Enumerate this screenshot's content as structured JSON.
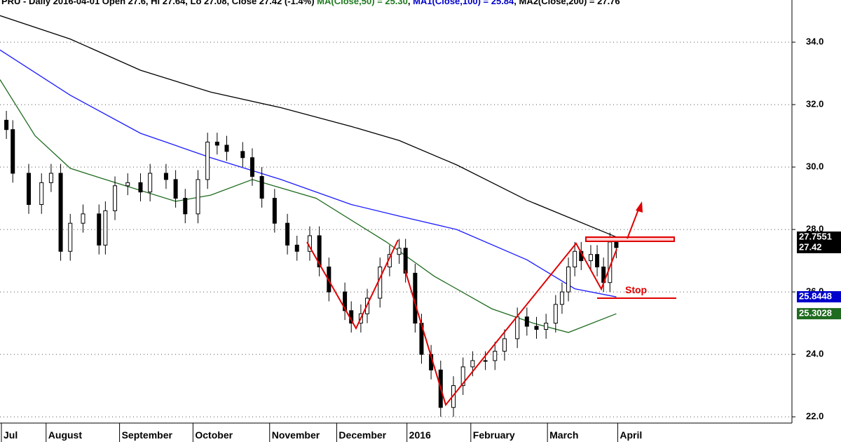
{
  "chart_data": {
    "type": "candlestick",
    "title_parts": [
      {
        "text": "PRU - Daily 2016-04-01 Open 27.6, Hi 27.64, Lo 27.08, Close 27.42 (-1.4%) ",
        "color": "#000000"
      },
      {
        "text": "MA(Close,50) = 25.30",
        "color": "#1f7a1f"
      },
      {
        "text": ", ",
        "color": "#000000"
      },
      {
        "text": "MA1(Close,100) = 25.84",
        "color": "#0000cc"
      },
      {
        "text": ", MA2(Close,200) = 27.76",
        "color": "#000000"
      }
    ],
    "xlim": [
      0,
      248
    ],
    "xticks": [
      {
        "value": 0,
        "label": "Jul"
      },
      {
        "value": 14,
        "label": "August"
      },
      {
        "value": 37,
        "label": "September"
      },
      {
        "value": 60,
        "label": "October"
      },
      {
        "value": 84,
        "label": "November"
      },
      {
        "value": 105,
        "label": "December"
      },
      {
        "value": 127,
        "label": "2016"
      },
      {
        "value": 147,
        "label": "February"
      },
      {
        "value": 171,
        "label": "March"
      },
      {
        "value": 193,
        "label": "April"
      }
    ],
    "ylim": [
      21.8,
      35.35
    ],
    "yticks": [
      {
        "value": 22,
        "label": "22.0"
      },
      {
        "value": 24,
        "label": "24.0"
      },
      {
        "value": 26,
        "label": "26.0"
      },
      {
        "value": 28,
        "label": "28.0"
      },
      {
        "value": 30,
        "label": "30.0"
      },
      {
        "value": 32,
        "label": "32.0"
      },
      {
        "value": 34,
        "label": "34.0"
      }
    ],
    "grid": true,
    "candles": {
      "x": [
        2,
        4,
        9,
        13,
        16,
        19,
        22,
        26,
        31,
        33,
        36,
        40,
        44,
        47,
        52,
        55,
        58,
        62,
        65,
        68,
        71,
        76,
        79,
        82,
        86,
        90,
        93,
        97,
        100,
        103,
        108,
        110,
        113,
        115,
        119,
        122,
        125,
        127,
        130,
        132,
        135,
        138,
        142,
        145,
        148,
        152,
        155,
        158,
        162,
        165,
        168,
        171,
        174,
        176,
        178,
        180,
        182,
        185,
        187,
        189,
        191,
        193
      ],
      "open": [
        31.5,
        31.2,
        29.8,
        28.8,
        29.5,
        29.8,
        27.3,
        28.2,
        28.5,
        27.5,
        28.6,
        29.4,
        29.5,
        29.2,
        29.8,
        29.6,
        29.0,
        28.5,
        29.6,
        30.8,
        30.7,
        30.5,
        30.3,
        29.7,
        29.0,
        28.2,
        27.5,
        27.3,
        27.8,
        26.8,
        26.0,
        25.4,
        25.0,
        25.3,
        25.8,
        26.8,
        27.2,
        27.4,
        26.6,
        25.0,
        24.0,
        23.5,
        22.3,
        23.0,
        23.6,
        23.8,
        23.8,
        24.1,
        24.5,
        25.2,
        24.9,
        24.8,
        25.0,
        25.6,
        26.0,
        26.8,
        27.3,
        27.0,
        27.2,
        26.8,
        26.3,
        27.6
      ],
      "high": [
        31.8,
        31.5,
        30.1,
        29.8,
        30.1,
        30.1,
        28.5,
        28.8,
        28.8,
        28.9,
        29.7,
        29.8,
        29.8,
        30.1,
        30.1,
        29.9,
        29.3,
        29.9,
        31.1,
        31.1,
        31.0,
        30.8,
        30.6,
        30.0,
        29.3,
        28.5,
        27.8,
        28.1,
        28.1,
        27.1,
        26.3,
        25.7,
        25.6,
        26.1,
        27.1,
        27.5,
        27.7,
        27.7,
        26.9,
        25.3,
        24.3,
        23.8,
        23.3,
        23.9,
        24.1,
        24.1,
        24.4,
        24.8,
        25.5,
        25.5,
        25.2,
        25.3,
        25.9,
        26.3,
        27.1,
        27.6,
        27.6,
        27.5,
        27.5,
        27.1,
        27.9,
        27.64
      ],
      "low": [
        30.9,
        29.5,
        28.5,
        28.5,
        29.2,
        27.0,
        27.0,
        27.9,
        27.2,
        27.2,
        28.3,
        29.1,
        28.9,
        28.9,
        29.3,
        28.7,
        28.2,
        28.2,
        29.3,
        30.4,
        30.2,
        30.0,
        29.4,
        28.7,
        27.9,
        27.2,
        27.0,
        27.0,
        26.5,
        25.7,
        25.1,
        24.7,
        24.7,
        25.0,
        25.5,
        26.5,
        26.9,
        26.3,
        24.7,
        23.7,
        23.2,
        22.0,
        22.0,
        22.7,
        23.3,
        23.5,
        23.5,
        23.8,
        24.2,
        24.6,
        24.5,
        24.5,
        24.7,
        25.3,
        25.7,
        26.5,
        26.7,
        26.7,
        26.5,
        26.0,
        26.0,
        27.08
      ],
      "close": [
        31.2,
        29.8,
        28.8,
        29.5,
        29.8,
        27.3,
        28.2,
        28.5,
        27.5,
        28.6,
        29.4,
        29.5,
        29.2,
        29.8,
        29.6,
        29.0,
        28.5,
        29.6,
        30.8,
        30.7,
        30.5,
        30.3,
        29.7,
        29.0,
        28.2,
        27.5,
        27.3,
        27.8,
        26.8,
        26.0,
        25.4,
        25.0,
        25.3,
        25.8,
        26.8,
        27.2,
        27.4,
        26.6,
        25.0,
        24.0,
        23.5,
        22.3,
        23.0,
        23.6,
        23.8,
        23.8,
        24.1,
        24.5,
        25.2,
        24.9,
        24.8,
        25.0,
        25.6,
        26.0,
        26.8,
        27.3,
        27.0,
        27.2,
        26.8,
        26.3,
        27.6,
        27.42
      ]
    },
    "moving_averages": [
      {
        "color": "#1f6b1f",
        "x": [
          0,
          11,
          22,
          33,
          55,
          66,
          79,
          99,
          121,
          136,
          154,
          167,
          178,
          193
        ],
        "values": [
          32.8,
          31.0,
          29.96,
          29.6,
          28.9,
          29.1,
          29.6,
          29.0,
          27.6,
          26.5,
          25.46,
          25.0,
          24.7,
          25.3
        ]
      },
      {
        "color": "#1a1aff",
        "x": [
          0,
          22,
          44,
          66,
          88,
          110,
          125,
          143,
          165,
          180,
          193
        ],
        "values": [
          33.75,
          32.3,
          31.08,
          30.3,
          29.6,
          28.8,
          28.43,
          28.0,
          27.03,
          26.1,
          25.84
        ]
      },
      {
        "color": "#000000",
        "x": [
          0,
          22,
          44,
          66,
          88,
          110,
          125,
          143,
          165,
          193
        ],
        "values": [
          34.85,
          34.1,
          33.1,
          32.4,
          31.9,
          31.3,
          30.85,
          30.07,
          28.94,
          27.76
        ]
      }
    ],
    "price_labels": [
      {
        "value": 27.7551,
        "label": "27.7551",
        "color": "#000000"
      },
      {
        "value": 27.42,
        "label": "27.42",
        "color": "#000000"
      },
      {
        "value": 25.8448,
        "label": "25.8448",
        "color": "#0000cc"
      },
      {
        "value": 25.3028,
        "label": "25.3028",
        "color": "#1f6b1f"
      }
    ],
    "annotation": "Stop"
  }
}
